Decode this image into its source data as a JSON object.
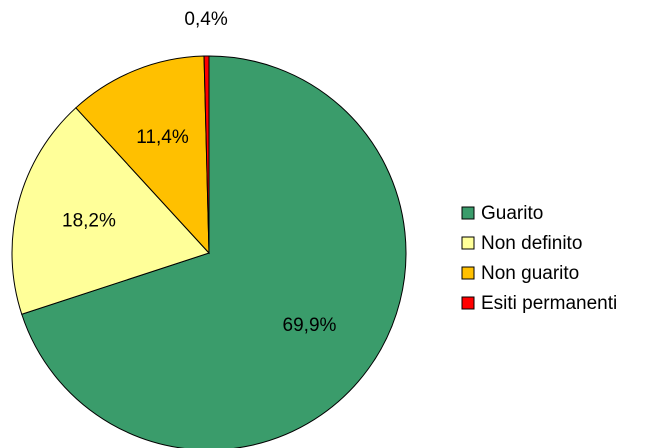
{
  "chart_data": {
    "type": "pie",
    "categories": [
      "Guarito",
      "Non definito",
      "Non guarito",
      "Esiti permanenti"
    ],
    "values": [
      69.9,
      18.2,
      11.4,
      0.4
    ],
    "value_labels": [
      "69,9%",
      "18,2%",
      "11,4%",
      "0,4%"
    ],
    "colors": [
      "#3a9c6b",
      "#ffff99",
      "#ffc000",
      "#ff0000"
    ],
    "legend": "right"
  }
}
